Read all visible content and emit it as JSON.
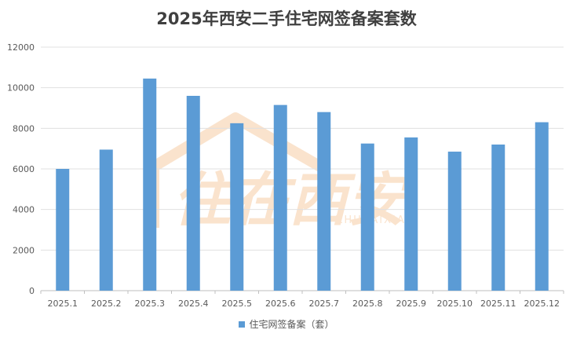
{
  "chart_data": {
    "type": "bar",
    "title": "2025年西安二手住宅网签备案套数",
    "categories": [
      "2025.1",
      "2025.2",
      "2025.3",
      "2025.4",
      "2025.5",
      "2025.6",
      "2025.7",
      "2025.8",
      "2025.9",
      "2025.10",
      "2025.11",
      "2025.12"
    ],
    "series": [
      {
        "name": "住宅网签备案（套）",
        "values": [
          6000,
          6950,
          10450,
          9600,
          8250,
          9150,
          8800,
          7250,
          7550,
          6850,
          7200,
          8300
        ],
        "color": "#5b9bd5"
      }
    ],
    "ylim": [
      0,
      12000
    ],
    "yticks": [
      0,
      2000,
      4000,
      6000,
      8000,
      10000,
      12000
    ],
    "grid": true,
    "legend_position": "bottom",
    "watermark": {
      "text": "住在西安",
      "subtext": "ZHUZAIXIAN",
      "color": "#f6cda6"
    }
  }
}
